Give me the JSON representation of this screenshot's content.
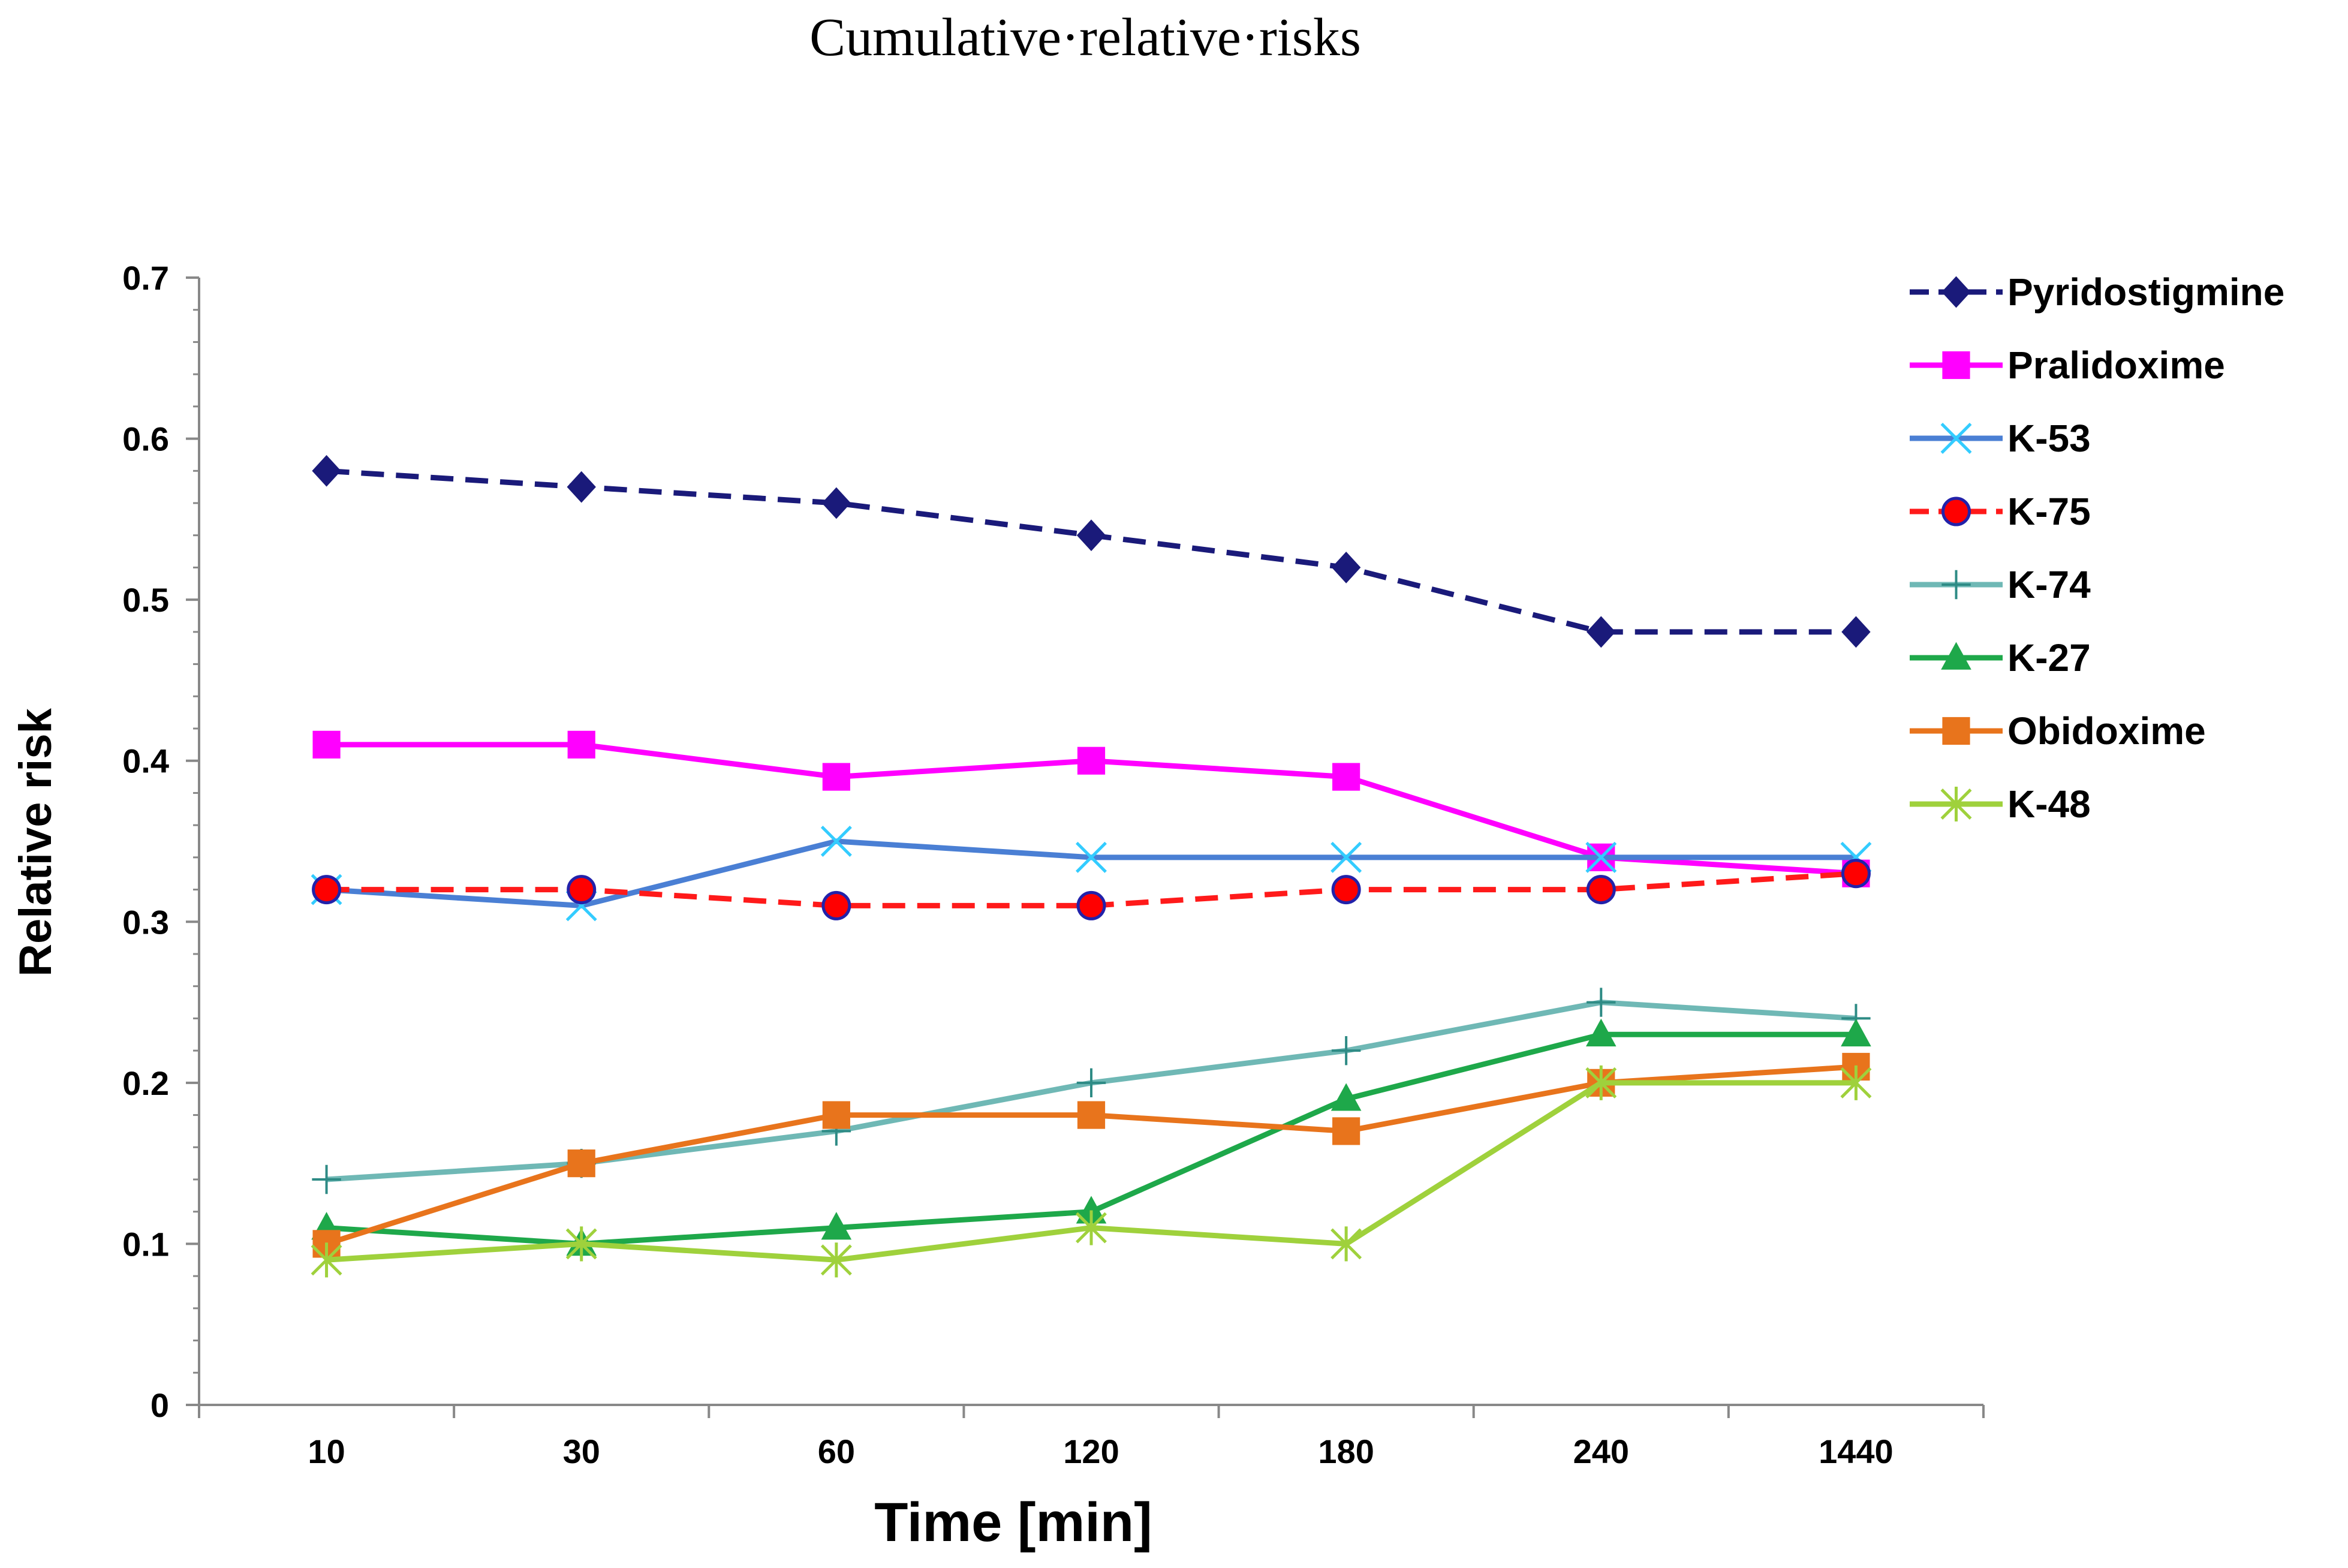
{
  "chart_data": {
    "type": "line",
    "title": "Cumulative·relative·risks",
    "xlabel": "Time [min]",
    "ylabel": "Relative risk",
    "categories": [
      "10",
      "30",
      "60",
      "120",
      "180",
      "240",
      "1440"
    ],
    "ylim": [
      0,
      0.7
    ],
    "yticks": [
      "0",
      "0.1",
      "0.2",
      "0.3",
      "0.4",
      "0.5",
      "0.6",
      "0.7"
    ],
    "grid": false,
    "legend_position": "right",
    "series": [
      {
        "name": "Pyridostigmine",
        "color": "#1a1a7a",
        "dash": true,
        "marker": "diamond",
        "values": [
          0.58,
          0.57,
          0.56,
          0.54,
          0.52,
          0.48,
          0.48
        ]
      },
      {
        "name": "Pralidoxime",
        "color": "#ff00ff",
        "dash": false,
        "marker": "square",
        "values": [
          0.41,
          0.41,
          0.39,
          0.4,
          0.39,
          0.34,
          0.33
        ]
      },
      {
        "name": "K-53",
        "color": "#4a7fd4",
        "dash": false,
        "marker": "x",
        "marker_color": "#33ccff",
        "values": [
          0.32,
          0.31,
          0.35,
          0.34,
          0.34,
          0.34,
          0.34
        ]
      },
      {
        "name": "K-75",
        "color": "#ff1a1a",
        "dash": true,
        "marker": "circle",
        "marker_color": "#ff0000",
        "marker_stroke": "#2222aa",
        "values": [
          0.32,
          0.32,
          0.31,
          0.31,
          0.32,
          0.32,
          0.33
        ]
      },
      {
        "name": "K-74",
        "color": "#6fb8b5",
        "dash": false,
        "marker": "plus",
        "marker_color": "#2e8b85",
        "values": [
          0.14,
          0.15,
          0.17,
          0.2,
          0.22,
          0.25,
          0.24
        ]
      },
      {
        "name": "K-27",
        "color": "#1ea84a",
        "dash": false,
        "marker": "triangle",
        "values": [
          0.11,
          0.1,
          0.11,
          0.12,
          0.19,
          0.23,
          0.23
        ]
      },
      {
        "name": "Obidoxime",
        "color": "#e8741c",
        "dash": false,
        "marker": "square",
        "values": [
          0.1,
          0.15,
          0.18,
          0.18,
          0.17,
          0.2,
          0.21
        ]
      },
      {
        "name": "K-48",
        "color": "#9fd13c",
        "dash": false,
        "marker": "star",
        "values": [
          0.09,
          0.1,
          0.09,
          0.11,
          0.1,
          0.2,
          0.2
        ]
      }
    ]
  }
}
